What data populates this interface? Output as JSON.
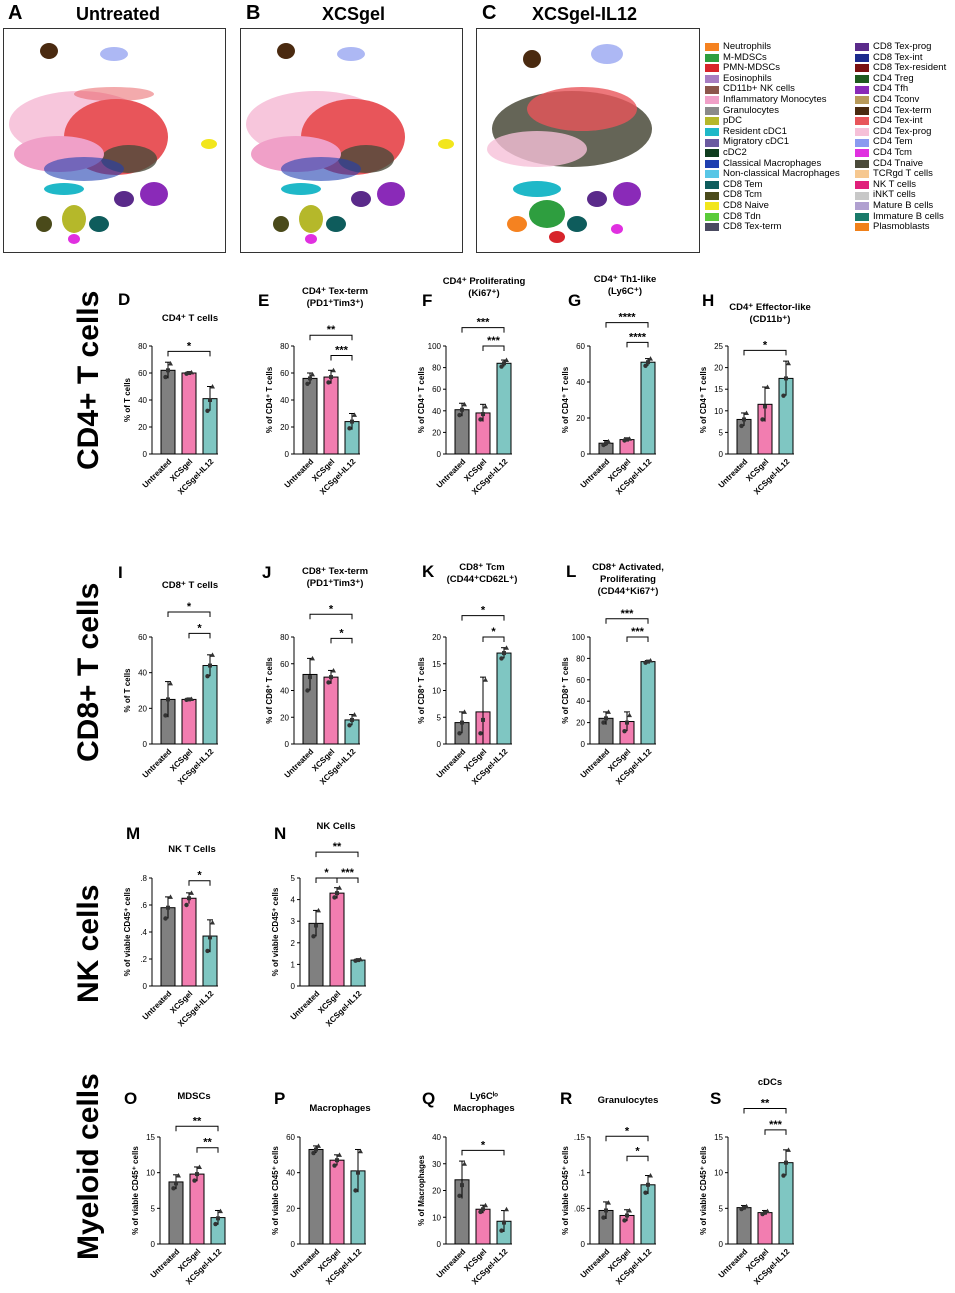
{
  "umap": {
    "panels": [
      {
        "letter": "A",
        "title": "Untreated"
      },
      {
        "letter": "B",
        "title": "XCSgel"
      },
      {
        "letter": "C",
        "title": "XCSgel-IL12"
      }
    ],
    "legend": [
      {
        "label": "Neutrophils",
        "color": "#f58220"
      },
      {
        "label": "M-MDSCs",
        "color": "#2e9e3f"
      },
      {
        "label": "PMN-MDSCs",
        "color": "#d7242b"
      },
      {
        "label": "Eosinophils",
        "color": "#a77dc2"
      },
      {
        "label": "CD11b+ NK cells",
        "color": "#8c564b"
      },
      {
        "label": "Inflammatory Monocytes",
        "color": "#f0a0c8"
      },
      {
        "label": "Granulocytes",
        "color": "#8a8a8a"
      },
      {
        "label": "pDC",
        "color": "#b5b82a"
      },
      {
        "label": "Resident cDC1",
        "color": "#1fb8c8"
      },
      {
        "label": "Migratory cDC1",
        "color": "#6b5aa0"
      },
      {
        "label": "cDC2",
        "color": "#0f3d1e"
      },
      {
        "label": "Classical Macrophages",
        "color": "#1f3fb0"
      },
      {
        "label": "Non-classical Macrophages",
        "color": "#58c6e6"
      },
      {
        "label": "CD8 Tem",
        "color": "#0e5c5c"
      },
      {
        "label": "CD8 Tcm",
        "color": "#4a4a1a"
      },
      {
        "label": "CD8 Naive",
        "color": "#f2e61c"
      },
      {
        "label": "CD8 Tdn",
        "color": "#5acb3a"
      },
      {
        "label": "CD8 Tex-term",
        "color": "#4a4a60"
      },
      {
        "label": "CD8 Tex-prog",
        "color": "#5a2a8a"
      },
      {
        "label": "CD8 Tex-int",
        "color": "#1c2a8c"
      },
      {
        "label": "CD8 Tex-resident",
        "color": "#7a1010"
      },
      {
        "label": "CD4 Treg",
        "color": "#1e5a1e"
      },
      {
        "label": "CD4 Tfh",
        "color": "#8a2ab8"
      },
      {
        "label": "CD4 Tconv",
        "color": "#b89a5a"
      },
      {
        "label": "CD4 Tex-term",
        "color": "#4a2a10"
      },
      {
        "label": "CD4 Tex-int",
        "color": "#e8555a"
      },
      {
        "label": "CD4 Tex-prog",
        "color": "#f6c0d8"
      },
      {
        "label": "CD4 Tem",
        "color": "#8a9af0"
      },
      {
        "label": "CD4 Tcm",
        "color": "#e030e0"
      },
      {
        "label": "CD4 Tnaive",
        "color": "#4a4a3a"
      },
      {
        "label": "TCRgd T cells",
        "color": "#f6c890"
      },
      {
        "label": "NK T cells",
        "color": "#e0207a"
      },
      {
        "label": "iNKT cells",
        "color": "#c8c8c8"
      },
      {
        "label": "Mature B cells",
        "color": "#b0a0d0"
      },
      {
        "label": "Immature B cells",
        "color": "#1a7a6a"
      },
      {
        "label": "Plasmoblasts",
        "color": "#f0801a"
      }
    ]
  },
  "sections": {
    "cd4": "CD4+ T cells",
    "cd8": "CD8+ T cells",
    "nk": "NK cells",
    "myeloid": "Myeloid  cells"
  },
  "colors": {
    "untreated": "#808080",
    "xcsgel": "#f27db0",
    "il12": "#7fc6c2",
    "dot": "#333333"
  },
  "chart_data": [
    {
      "letter": "D",
      "type": "bar",
      "title": [
        "CD4⁺ T cells"
      ],
      "ylabel": "% of T cells",
      "ylim": [
        0,
        80
      ],
      "yticks": [
        0,
        20,
        40,
        60,
        80
      ],
      "categories": [
        "Untreated",
        "XCSgel",
        "XCSgel-IL12"
      ],
      "values": [
        62,
        60,
        41
      ],
      "sd": [
        6,
        0.8,
        9
      ],
      "points": [
        [
          57,
          62,
          67
        ],
        [
          59.5,
          60,
          60.5
        ],
        [
          32,
          40,
          50
        ]
      ],
      "sig": [
        {
          "a": 0,
          "b": 2,
          "text": "*",
          "y": 76
        }
      ]
    },
    {
      "letter": "E",
      "type": "bar",
      "title": [
        "CD4⁺ Tex-term",
        "(PD1⁺Tim3⁺)"
      ],
      "ylabel": "% of CD4⁺ T cells",
      "ylim": [
        0,
        80
      ],
      "yticks": [
        0,
        20,
        40,
        60,
        80
      ],
      "categories": [
        "Untreated",
        "XCSgel",
        "XCSgel-IL12"
      ],
      "values": [
        56,
        57,
        24
      ],
      "sd": [
        4,
        5,
        6
      ],
      "points": [
        [
          52,
          56,
          59
        ],
        [
          53,
          57,
          62
        ],
        [
          19,
          24,
          29
        ]
      ],
      "sig": [
        {
          "a": 0,
          "b": 2,
          "text": "**",
          "y": 88
        },
        {
          "a": 1,
          "b": 2,
          "text": "***",
          "y": 73
        }
      ]
    },
    {
      "letter": "F",
      "type": "bar",
      "title": [
        "CD4⁺ Proliferating",
        "(Ki67⁺)"
      ],
      "ylabel": "% of CD4⁺ T cells",
      "ylim": [
        0,
        100
      ],
      "yticks": [
        0,
        20,
        40,
        60,
        80,
        100
      ],
      "categories": [
        "Untreated",
        "XCSgel",
        "XCSgel-IL12"
      ],
      "values": [
        41,
        38,
        84
      ],
      "sd": [
        6,
        8,
        3
      ],
      "points": [
        [
          36,
          41,
          46
        ],
        [
          32,
          37,
          44
        ],
        [
          81,
          84,
          87
        ]
      ],
      "sig": [
        {
          "a": 0,
          "b": 2,
          "text": "***",
          "y": 117
        },
        {
          "a": 1,
          "b": 2,
          "text": "***",
          "y": 100
        }
      ]
    },
    {
      "letter": "G",
      "type": "bar",
      "title": [
        "CD4⁺ Th1-like",
        "(Ly6C⁺)"
      ],
      "ylabel": "% of CD4⁺ T cells",
      "ylim": [
        0,
        60
      ],
      "yticks": [
        0,
        20,
        40,
        60
      ],
      "categories": [
        "Untreated",
        "XCSgel",
        "XCSgel-IL12"
      ],
      "values": [
        6,
        8,
        51
      ],
      "sd": [
        1.5,
        1,
        2
      ],
      "points": [
        [
          5,
          6,
          7
        ],
        [
          7.5,
          8,
          8.5
        ],
        [
          49,
          51,
          53
        ]
      ],
      "sig": [
        {
          "a": 0,
          "b": 2,
          "text": "****",
          "y": 73
        },
        {
          "a": 1,
          "b": 2,
          "text": "****",
          "y": 62
        }
      ]
    },
    {
      "letter": "H",
      "type": "bar",
      "title": [
        "CD4⁺ Effector-like",
        "(CD11b⁺)"
      ],
      "ylabel": "% of CD4⁺ T cells",
      "ylim": [
        0,
        25
      ],
      "yticks": [
        0,
        5,
        10,
        15,
        20,
        25
      ],
      "categories": [
        "Untreated",
        "XCSgel",
        "XCSgel-IL12"
      ],
      "values": [
        8,
        11.5,
        17.5
      ],
      "sd": [
        1.5,
        4,
        4
      ],
      "points": [
        [
          6.5,
          8,
          9.5
        ],
        [
          8,
          11,
          15.5
        ],
        [
          13.5,
          17.5,
          21
        ]
      ],
      "sig": [
        {
          "a": 0,
          "b": 2,
          "text": "*",
          "y": 24
        }
      ]
    },
    {
      "letter": "I",
      "type": "bar",
      "title": [
        "CD8⁺ T cells"
      ],
      "ylabel": "% of T cells",
      "ylim": [
        0,
        60
      ],
      "yticks": [
        0,
        20,
        40,
        60
      ],
      "categories": [
        "Untreated",
        "XCSgel",
        "XCSgel-IL12"
      ],
      "values": [
        25,
        25,
        44
      ],
      "sd": [
        10,
        0.3,
        6
      ],
      "points": [
        [
          16,
          25,
          34
        ],
        [
          24.8,
          25,
          25.2
        ],
        [
          38,
          44,
          50
        ]
      ],
      "sig": [
        {
          "a": 0,
          "b": 2,
          "text": "*",
          "y": 74
        },
        {
          "a": 1,
          "b": 2,
          "text": "*",
          "y": 62
        }
      ]
    },
    {
      "letter": "J",
      "type": "bar",
      "title": [
        "CD8⁺ Tex-term",
        "(PD1⁺Tim3⁺)"
      ],
      "ylabel": "% of CD8⁺ T cells",
      "ylim": [
        0,
        80
      ],
      "yticks": [
        0,
        20,
        40,
        60,
        80
      ],
      "categories": [
        "Untreated",
        "XCSgel",
        "XCSgel-IL12"
      ],
      "values": [
        52,
        50,
        18
      ],
      "sd": [
        12,
        5,
        4
      ],
      "points": [
        [
          40,
          50,
          64
        ],
        [
          46,
          50,
          55
        ],
        [
          14,
          18,
          22
        ]
      ],
      "sig": [
        {
          "a": 0,
          "b": 2,
          "text": "*",
          "y": 97
        },
        {
          "a": 1,
          "b": 2,
          "text": "*",
          "y": 79
        }
      ]
    },
    {
      "letter": "K",
      "type": "bar",
      "title": [
        "CD8⁺ Tcm",
        "(CD44⁺CD62L⁺)"
      ],
      "ylabel": "% of CD8⁺ T cells",
      "ylim": [
        0,
        20
      ],
      "yticks": [
        0,
        5,
        10,
        15,
        20
      ],
      "categories": [
        "Untreated",
        "XCSgel",
        "XCSgel-IL12"
      ],
      "values": [
        4,
        6,
        17
      ],
      "sd": [
        2,
        6.5,
        1
      ],
      "points": [
        [
          2,
          4,
          6
        ],
        [
          2,
          4.5,
          12
        ],
        [
          16,
          17,
          18
        ]
      ],
      "sig": [
        {
          "a": 0,
          "b": 2,
          "text": "*",
          "y": 24
        },
        {
          "a": 1,
          "b": 2,
          "text": "*",
          "y": 20
        }
      ]
    },
    {
      "letter": "L",
      "type": "bar",
      "title": [
        "CD8⁺ Activated,",
        "Proliferating",
        "(CD44⁺Ki67⁺)"
      ],
      "ylabel": "% of CD8⁺ T cells",
      "ylim": [
        0,
        100
      ],
      "yticks": [
        0,
        20,
        40,
        60,
        80,
        100
      ],
      "categories": [
        "Untreated",
        "XCSgel",
        "XCSgel-IL12"
      ],
      "values": [
        24,
        21,
        77
      ],
      "sd": [
        6,
        9,
        1
      ],
      "points": [
        [
          20,
          24,
          30
        ],
        [
          12,
          20,
          27
        ],
        [
          76,
          77,
          78
        ]
      ],
      "sig": [
        {
          "a": 0,
          "b": 2,
          "text": "***",
          "y": 117
        },
        {
          "a": 1,
          "b": 2,
          "text": "***",
          "y": 100
        }
      ]
    },
    {
      "letter": "M",
      "type": "bar",
      "title": [
        "NK T Cells"
      ],
      "ylabel": "% of viable CD45⁺ cells",
      "ylim": [
        0,
        0.8
      ],
      "yticks": [
        0,
        0.2,
        0.4,
        0.6,
        0.8
      ],
      "categories": [
        "Untreated",
        "XCSgel",
        "XCSgel-IL12"
      ],
      "values": [
        0.58,
        0.65,
        0.37
      ],
      "sd": [
        0.08,
        0.04,
        0.12
      ],
      "points": [
        [
          0.5,
          0.58,
          0.66
        ],
        [
          0.6,
          0.65,
          0.69
        ],
        [
          0.26,
          0.36,
          0.47
        ]
      ],
      "sig": [
        {
          "a": 1,
          "b": 2,
          "text": "*",
          "y": 0.78
        }
      ]
    },
    {
      "letter": "N",
      "type": "bar",
      "title": [
        "NK Cells"
      ],
      "ylabel": "% of viable CD45⁺ cells",
      "ylim": [
        0,
        5
      ],
      "yticks": [
        0,
        1,
        2,
        3,
        4,
        5
      ],
      "categories": [
        "Untreated",
        "XCSgel",
        "XCSgel-IL12"
      ],
      "values": [
        2.9,
        4.3,
        1.2
      ],
      "sd": [
        0.6,
        0.25,
        0.05
      ],
      "points": [
        [
          2.3,
          2.8,
          3.5
        ],
        [
          4.1,
          4.3,
          4.55
        ],
        [
          1.17,
          1.2,
          1.23
        ]
      ],
      "sig": [
        {
          "a": 0,
          "b": 2,
          "text": "**",
          "y": 6.2
        },
        {
          "a": 0,
          "b": 1,
          "text": "*",
          "y": 5.0
        },
        {
          "a": 1,
          "b": 2,
          "text": "***",
          "y": 5.0
        }
      ]
    },
    {
      "letter": "O",
      "type": "bar",
      "title": [
        "MDSCs"
      ],
      "ylabel": "% of viable CD45⁺ cells",
      "ylim": [
        0,
        15
      ],
      "yticks": [
        0,
        5,
        10,
        15
      ],
      "categories": [
        "Untreated",
        "XCSgel",
        "XCSgel-IL12"
      ],
      "values": [
        8.7,
        9.8,
        3.7
      ],
      "sd": [
        1,
        1,
        1
      ],
      "points": [
        [
          7.8,
          8.5,
          9.6
        ],
        [
          8.9,
          9.8,
          10.8
        ],
        [
          2.8,
          3.6,
          4.6
        ]
      ],
      "sig": [
        {
          "a": 0,
          "b": 2,
          "text": "**",
          "y": 16.5
        },
        {
          "a": 1,
          "b": 2,
          "text": "**",
          "y": 13.5
        }
      ]
    },
    {
      "letter": "P",
      "type": "bar",
      "title": [
        "Macrophages"
      ],
      "ylabel": "% of viable CD45⁺ cells",
      "ylim": [
        0,
        60
      ],
      "yticks": [
        0,
        20,
        40,
        60
      ],
      "categories": [
        "Untreated",
        "XCSgel",
        "XCSgel-IL12"
      ],
      "values": [
        53,
        47,
        41
      ],
      "sd": [
        2,
        3,
        12
      ],
      "points": [
        [
          51,
          53,
          55
        ],
        [
          44,
          47,
          50
        ],
        [
          30,
          40,
          52
        ]
      ],
      "sig": []
    },
    {
      "letter": "Q",
      "type": "bar",
      "title": [
        "Ly6Cˡᵒ",
        "Macrophages"
      ],
      "ylabel": "% of Macrophages",
      "ylim": [
        0,
        40
      ],
      "yticks": [
        0,
        10,
        20,
        30,
        40
      ],
      "categories": [
        "Untreated",
        "XCSgel",
        "XCSgel-IL12"
      ],
      "values": [
        24,
        13,
        8.5
      ],
      "sd": [
        7,
        1.5,
        4
      ],
      "points": [
        [
          18,
          22,
          30
        ],
        [
          12,
          13,
          14.5
        ],
        [
          5,
          8,
          13
        ]
      ],
      "sig": [
        {
          "a": 0,
          "b": 2,
          "text": "*",
          "y": 35
        }
      ]
    },
    {
      "letter": "R",
      "type": "bar",
      "title": [
        "Granulocytes"
      ],
      "ylabel": "% of viable CD45⁺ cells",
      "ylim": [
        0,
        0.15
      ],
      "yticks": [
        0,
        0.05,
        0.1,
        0.15
      ],
      "categories": [
        "Untreated",
        "XCSgel",
        "XCSgel-IL12"
      ],
      "values": [
        0.047,
        0.04,
        0.083
      ],
      "sd": [
        0.012,
        0.008,
        0.013
      ],
      "points": [
        [
          0.037,
          0.047,
          0.058
        ],
        [
          0.033,
          0.04,
          0.047
        ],
        [
          0.072,
          0.083,
          0.096
        ]
      ],
      "sig": [
        {
          "a": 0,
          "b": 2,
          "text": "*",
          "y": 0.151
        },
        {
          "a": 1,
          "b": 2,
          "text": "*",
          "y": 0.123
        }
      ]
    },
    {
      "letter": "S",
      "type": "bar",
      "title": [
        "cDCs"
      ],
      "ylabel": "% of viable CD45⁺ cells",
      "ylim": [
        0,
        15
      ],
      "yticks": [
        0,
        5,
        10,
        15
      ],
      "categories": [
        "Untreated",
        "XCSgel",
        "XCSgel-IL12"
      ],
      "values": [
        5.1,
        4.4,
        11.4
      ],
      "sd": [
        0.3,
        0.3,
        1.8
      ],
      "points": [
        [
          4.9,
          5.1,
          5.3
        ],
        [
          4.2,
          4.4,
          4.6
        ],
        [
          9.6,
          11.4,
          13.2
        ]
      ],
      "sig": [
        {
          "a": 0,
          "b": 2,
          "text": "**",
          "y": 19
        },
        {
          "a": 1,
          "b": 2,
          "text": "***",
          "y": 16
        }
      ]
    }
  ]
}
